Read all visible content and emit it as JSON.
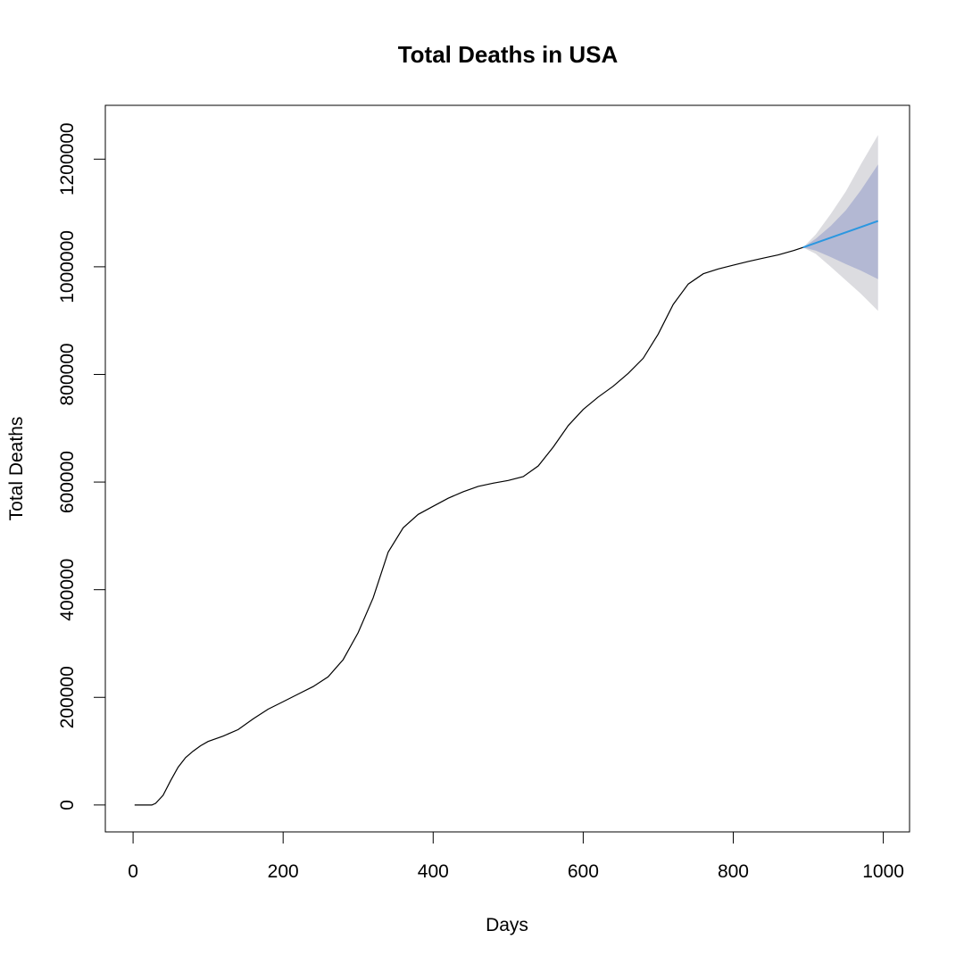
{
  "chart_data": {
    "type": "line",
    "title": "Total Deaths in USA",
    "xlabel": "Days",
    "ylabel": "Total Deaths",
    "xlim": [
      -37,
      1035
    ],
    "ylim": [
      -50000,
      1300000
    ],
    "x_ticks": [
      0,
      200,
      400,
      600,
      800,
      1000
    ],
    "x_tick_labels": [
      "0",
      "200",
      "400",
      "600",
      "800",
      "1000"
    ],
    "y_ticks": [
      0,
      200000,
      400000,
      600000,
      800000,
      1000000,
      1200000
    ],
    "y_tick_labels": [
      "0",
      "200000",
      "400000",
      "600000",
      "800000",
      "1000000",
      "1200000"
    ],
    "grid": false,
    "colors": {
      "observed": "#000000",
      "forecast": "#2b97e0",
      "band_80": "#b3b8d3",
      "band_95": "#dcdce0"
    },
    "series": [
      {
        "x": [
          2,
          25,
          30,
          40,
          50,
          60,
          70,
          80,
          90,
          100,
          120,
          140,
          160,
          180,
          200,
          220,
          240,
          260,
          280,
          300,
          320,
          340,
          360,
          380,
          400,
          420,
          440,
          460,
          480,
          500,
          520,
          540,
          560,
          580,
          600,
          620,
          640,
          660,
          680,
          700,
          720,
          740,
          760,
          780,
          800,
          820,
          840,
          860,
          880,
          893
        ],
        "y": [
          0,
          0,
          3000,
          18000,
          45000,
          70000,
          88000,
          100000,
          110000,
          118000,
          128000,
          140000,
          160000,
          178000,
          192000,
          206000,
          220000,
          238000,
          270000,
          320000,
          385000,
          470000,
          515000,
          540000,
          555000,
          570000,
          582000,
          592000,
          598000,
          603000,
          610000,
          630000,
          665000,
          705000,
          735000,
          758000,
          778000,
          802000,
          830000,
          875000,
          930000,
          968000,
          987000,
          996000,
          1003000,
          1010000,
          1016000,
          1022000,
          1030000,
          1036000
        ]
      },
      {
        "x": [
          893,
          993
        ],
        "y": [
          1036000,
          1085000
        ]
      }
    ],
    "forecast_intervals": {
      "x": [
        893,
        910,
        930,
        950,
        970,
        993
      ],
      "lo80": [
        1036000,
        1030000,
        1018000,
        1005000,
        993000,
        977000
      ],
      "hi80": [
        1036000,
        1052000,
        1076000,
        1105000,
        1142000,
        1190000
      ],
      "lo95": [
        1036000,
        1024000,
        1000000,
        975000,
        950000,
        918000
      ],
      "hi95": [
        1036000,
        1060000,
        1098000,
        1140000,
        1190000,
        1245000
      ]
    }
  }
}
